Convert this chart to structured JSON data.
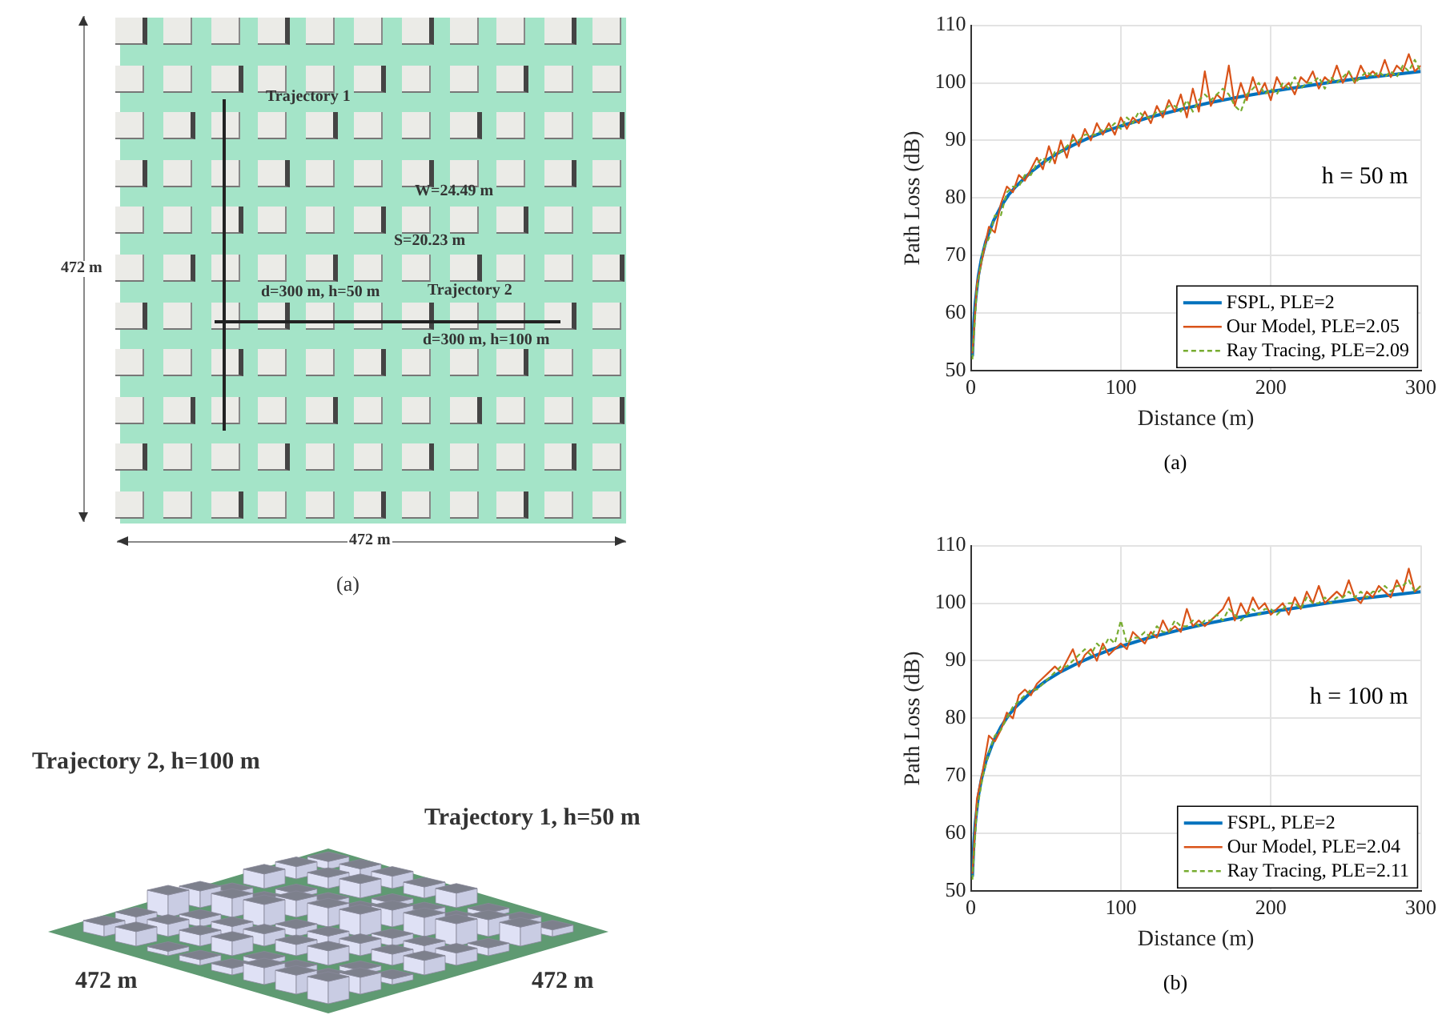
{
  "chart_data": [
    {
      "type": "other",
      "annotations": [
        "Trajectory 1",
        "W=24.49 m",
        "S=20.23 m",
        "d=300 m, h=50 m",
        "Trajectory 2",
        "d=300 m, h=100 m",
        "472 m",
        "472 m",
        "(a)"
      ]
    },
    {
      "type": "line",
      "xlabel": "Distance (m)",
      "ylabel": "Path Loss (dB)",
      "annotations": [
        "h = 50 m",
        "(a)"
      ],
      "xlim": [
        0,
        300
      ],
      "xticks": [
        0,
        100,
        200,
        300
      ],
      "ylim": [
        50,
        110
      ],
      "yticks": [
        50,
        60,
        70,
        80,
        90,
        100,
        110
      ],
      "grid": true,
      "legend": "bottom right",
      "x": [
        1,
        4,
        8,
        12,
        16,
        20,
        24,
        28,
        32,
        36,
        40,
        44,
        48,
        52,
        56,
        60,
        64,
        68,
        72,
        76,
        80,
        84,
        88,
        92,
        96,
        100,
        104,
        108,
        112,
        116,
        120,
        124,
        128,
        132,
        136,
        140,
        144,
        148,
        152,
        156,
        160,
        164,
        168,
        172,
        176,
        180,
        184,
        188,
        192,
        196,
        200,
        204,
        208,
        212,
        216,
        220,
        224,
        228,
        232,
        236,
        240,
        244,
        248,
        252,
        256,
        260,
        264,
        268,
        272,
        276,
        280,
        284,
        288,
        292,
        296,
        300
      ],
      "series": [
        {
          "name": "FSPL, PLE=2",
          "color": "#0072bd",
          "x": [
            1,
            2,
            3,
            5,
            7,
            10,
            15,
            20,
            25,
            30,
            40,
            50,
            60,
            70,
            80,
            90,
            100,
            120,
            140,
            160,
            180,
            200,
            220,
            240,
            260,
            280,
            300
          ],
          "values": [
            52.5,
            58.5,
            62.0,
            66.5,
            69.4,
            72.5,
            76.0,
            78.5,
            80.5,
            82.0,
            84.5,
            86.5,
            88.1,
            89.4,
            90.6,
            91.6,
            92.5,
            94.1,
            95.4,
            96.6,
            97.6,
            98.5,
            99.3,
            100.1,
            100.8,
            101.4,
            102.0
          ]
        },
        {
          "name": "Our Model, PLE=2.05",
          "color": "#d95319",
          "values": [
            53,
            65,
            70,
            75,
            74,
            79,
            82,
            81,
            84,
            83,
            85,
            87,
            85,
            89,
            86,
            90,
            87,
            91,
            89,
            92,
            90,
            93,
            91,
            93,
            91,
            94,
            92,
            94,
            93,
            95,
            93,
            96,
            94,
            97,
            95,
            98,
            94,
            99,
            95,
            102,
            96,
            98,
            97,
            103,
            96,
            100,
            97,
            101,
            98,
            100,
            97,
            101,
            99,
            100,
            98,
            101,
            100,
            102,
            99,
            101,
            100,
            103,
            100,
            102,
            100,
            103,
            101,
            102,
            101,
            104,
            101,
            103,
            102,
            105,
            102,
            103
          ]
        },
        {
          "name": "Ray Tracing, PLE=2.09",
          "color": "#77ac30",
          "line_style": "dashed",
          "values": [
            52,
            64,
            71,
            73,
            77,
            77,
            81,
            82,
            82,
            84,
            84,
            86,
            87,
            86,
            88,
            88,
            89,
            90,
            90,
            91,
            91,
            91,
            92,
            92,
            93,
            92,
            94,
            93,
            95,
            94,
            94,
            95,
            95,
            96,
            96,
            95,
            97,
            95,
            97,
            98,
            97,
            98,
            99,
            98,
            96,
            95,
            98,
            99,
            100,
            98,
            99,
            98,
            100,
            99,
            101,
            99,
            100,
            100,
            101,
            99,
            101,
            100,
            101,
            102,
            100,
            101,
            102,
            101,
            102,
            101,
            102,
            101,
            103,
            102,
            104,
            102
          ]
        }
      ]
    },
    {
      "type": "other",
      "annotations": [
        "Trajectory 2, h=100 m",
        "Trajectory 1, h=50 m",
        "472 m",
        "472 m"
      ]
    },
    {
      "type": "line",
      "xlabel": "Distance (m)",
      "ylabel": "Path Loss (dB)",
      "annotations": [
        "h = 100 m",
        "(b)"
      ],
      "xlim": [
        0,
        300
      ],
      "xticks": [
        0,
        100,
        200,
        300
      ],
      "ylim": [
        50,
        110
      ],
      "yticks": [
        50,
        60,
        70,
        80,
        90,
        100,
        110
      ],
      "grid": true,
      "legend": "bottom right",
      "x": [
        1,
        4,
        8,
        12,
        16,
        20,
        24,
        28,
        32,
        36,
        40,
        44,
        48,
        52,
        56,
        60,
        64,
        68,
        72,
        76,
        80,
        84,
        88,
        92,
        96,
        100,
        104,
        108,
        112,
        116,
        120,
        124,
        128,
        132,
        136,
        140,
        144,
        148,
        152,
        156,
        160,
        164,
        168,
        172,
        176,
        180,
        184,
        188,
        192,
        196,
        200,
        204,
        208,
        212,
        216,
        220,
        224,
        228,
        232,
        236,
        240,
        244,
        248,
        252,
        256,
        260,
        264,
        268,
        272,
        276,
        280,
        284,
        288,
        292,
        296,
        300
      ],
      "series": [
        {
          "name": "FSPL, PLE=2",
          "color": "#0072bd",
          "x": [
            1,
            2,
            3,
            5,
            7,
            10,
            15,
            20,
            25,
            30,
            40,
            50,
            60,
            70,
            80,
            90,
            100,
            120,
            140,
            160,
            180,
            200,
            220,
            240,
            260,
            280,
            300
          ],
          "values": [
            52.5,
            58.5,
            62.0,
            66.5,
            69.4,
            72.5,
            76.0,
            78.5,
            80.5,
            82.0,
            84.5,
            86.5,
            88.1,
            89.4,
            90.6,
            91.6,
            92.5,
            94.1,
            95.4,
            96.6,
            97.6,
            98.5,
            99.3,
            100.1,
            100.8,
            101.4,
            102.0
          ]
        },
        {
          "name": "Our Model, PLE=2.04",
          "color": "#d95319",
          "values": [
            53,
            66,
            71,
            77,
            76,
            78,
            81,
            80,
            84,
            85,
            84,
            86,
            87,
            88,
            89,
            88,
            90,
            92,
            89,
            91,
            92,
            90,
            93,
            91,
            92,
            93,
            92,
            95,
            94,
            93,
            95,
            94,
            97,
            95,
            96,
            95,
            99,
            96,
            97,
            96,
            97,
            98,
            99,
            101,
            97,
            100,
            98,
            101,
            99,
            100,
            98,
            99,
            100,
            98,
            101,
            99,
            102,
            100,
            103,
            100,
            101,
            102,
            101,
            104,
            101,
            100,
            102,
            101,
            103,
            102,
            101,
            104,
            102,
            106,
            102,
            103
          ]
        },
        {
          "name": "Ray Tracing, PLE=2.11",
          "color": "#77ac30",
          "line_style": "dashed",
          "values": [
            52,
            64,
            70,
            74,
            77,
            78,
            80,
            82,
            83,
            84,
            85,
            85,
            86,
            87,
            88,
            89,
            89,
            90,
            91,
            92,
            91,
            93,
            92,
            94,
            93,
            97,
            93,
            94,
            94,
            95,
            94,
            96,
            95,
            95,
            97,
            96,
            96,
            97,
            96,
            97,
            97,
            98,
            97,
            99,
            98,
            97,
            98,
            99,
            98,
            99,
            99,
            98,
            99,
            100,
            100,
            99,
            101,
            100,
            100,
            101,
            100,
            101,
            101,
            102,
            101,
            102,
            101,
            102,
            102,
            103,
            102,
            103,
            103,
            104,
            102,
            103
          ]
        }
      ]
    }
  ]
}
